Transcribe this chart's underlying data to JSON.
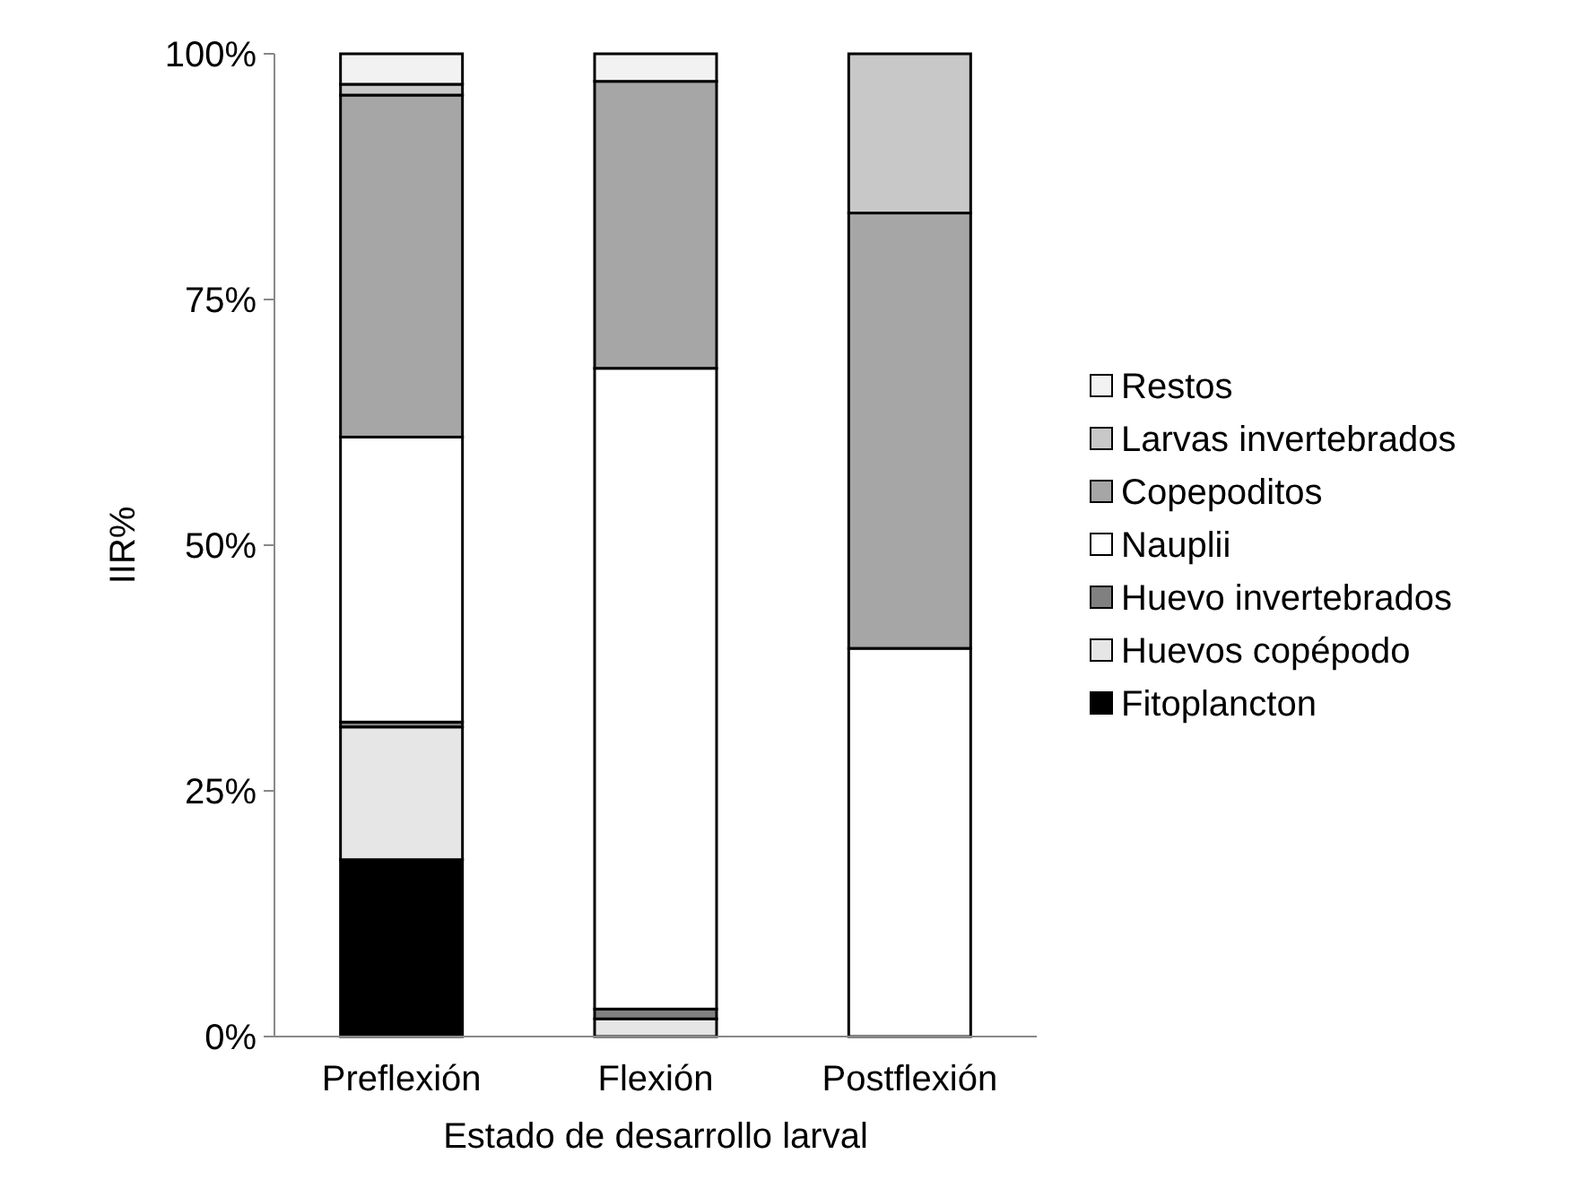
{
  "chart_data": {
    "type": "bar",
    "stacked": true,
    "xlabel": "Estado de desarrollo larval",
    "ylabel": "IIR%",
    "categories": [
      "Preflexión",
      "Flexión",
      "Postflexión"
    ],
    "series": [
      {
        "name": "Fitoplancton",
        "color": "#000000",
        "values": [
          18.0,
          0,
          0
        ]
      },
      {
        "name": "Huevos copépodo",
        "color": "#e6e6e6",
        "values": [
          13.5,
          1.8,
          0
        ]
      },
      {
        "name": "Huevo invertebrados",
        "color": "#808080",
        "values": [
          0.5,
          1.0,
          0
        ]
      },
      {
        "name": "Nauplii",
        "color": "#ffffff",
        "values": [
          29.0,
          65.2,
          39.5
        ]
      },
      {
        "name": "Copepoditos",
        "color": "#a6a6a6",
        "values": [
          34.8,
          29.2,
          44.3
        ]
      },
      {
        "name": "Larvas invertebrados",
        "color": "#c8c8c8",
        "values": [
          1.1,
          0,
          16.2
        ]
      },
      {
        "name": "Restos",
        "color": "#f2f2f2",
        "values": [
          3.1,
          2.8,
          0
        ]
      }
    ],
    "ylim": [
      0,
      100
    ],
    "yticks": [
      {
        "value": 0,
        "label": "0%"
      },
      {
        "value": 25,
        "label": "25%"
      },
      {
        "value": 50,
        "label": "50%"
      },
      {
        "value": 75,
        "label": "75%"
      },
      {
        "value": 100,
        "label": "100%"
      }
    ],
    "grid": false,
    "legend": "right"
  }
}
